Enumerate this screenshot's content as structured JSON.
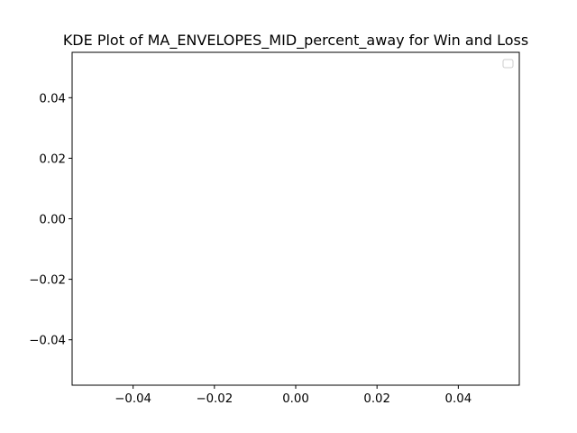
{
  "chart_data": {
    "type": "line",
    "title": "KDE Plot of MA_ENVELOPES_MID_percent_away for Win and Loss",
    "xlabel": "",
    "ylabel": "",
    "xlim": [
      -0.055,
      0.055
    ],
    "ylim": [
      -0.055,
      0.055
    ],
    "x_ticks": [
      -0.04,
      -0.02,
      0.0,
      0.02,
      0.04
    ],
    "x_tick_labels": [
      "−0.04",
      "−0.02",
      "0.00",
      "0.02",
      "0.04"
    ],
    "y_ticks": [
      0.04,
      0.02,
      0.0,
      -0.02,
      -0.04
    ],
    "y_tick_labels": [
      "0.04",
      "0.02",
      "0.00",
      "−0.02",
      "−0.04"
    ],
    "series": [],
    "grid": false,
    "legend": {
      "placement": "top-right",
      "entries": []
    }
  }
}
